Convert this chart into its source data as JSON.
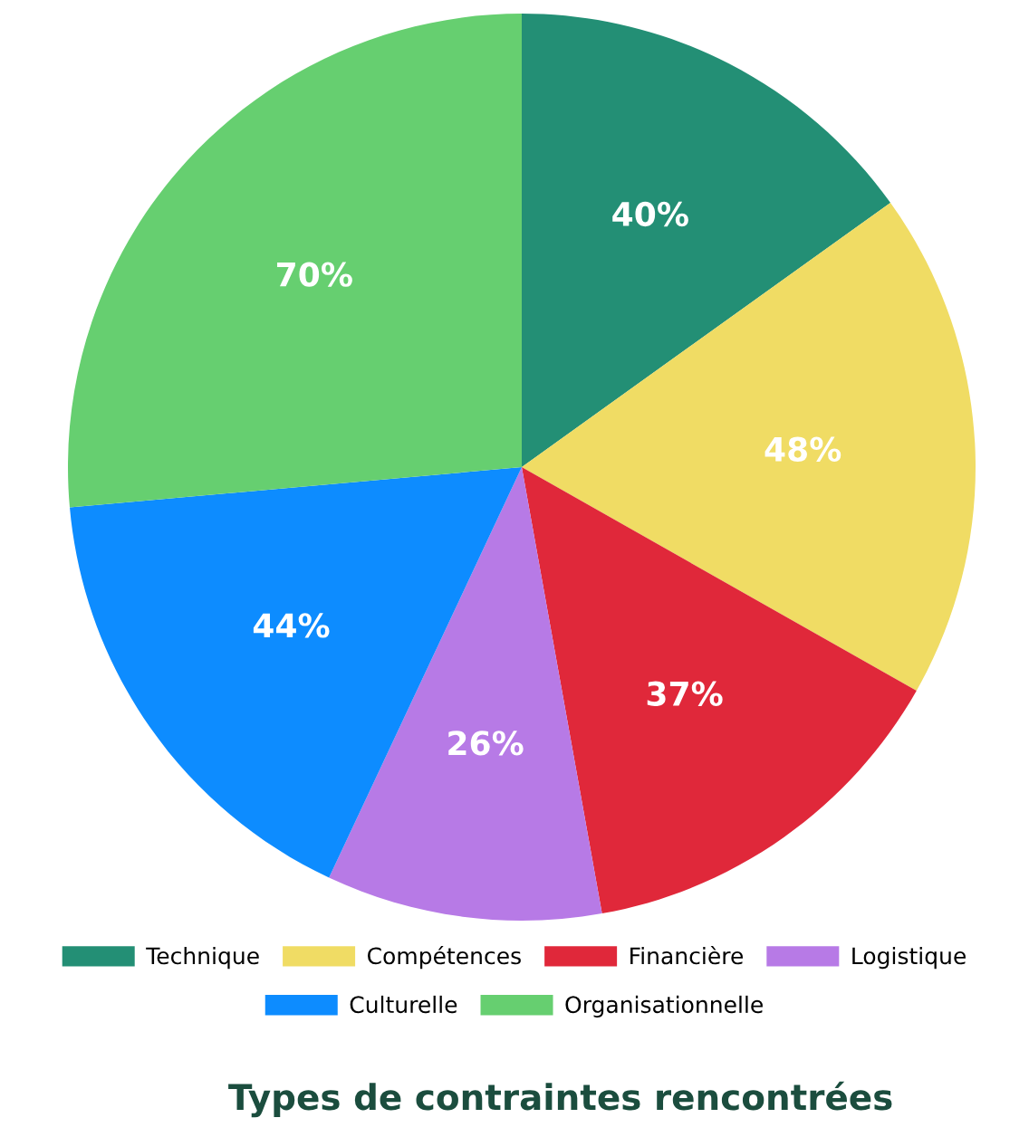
{
  "chart_data": {
    "type": "pie",
    "title": "Types de contraintes rencontrées",
    "categories": [
      "Technique",
      "Compétences",
      "Financière",
      "Logistique",
      "Culturelle",
      "Organisationnelle"
    ],
    "values": [
      40,
      48,
      37,
      26,
      44,
      70
    ],
    "colors": [
      "#238f75",
      "#f0dc64",
      "#e0283a",
      "#b77ae6",
      "#0d8cff",
      "#66cf70"
    ],
    "value_labels": [
      "40%",
      "48%",
      "37%",
      "26%",
      "44%",
      "70%"
    ],
    "legend": "bottom"
  }
}
